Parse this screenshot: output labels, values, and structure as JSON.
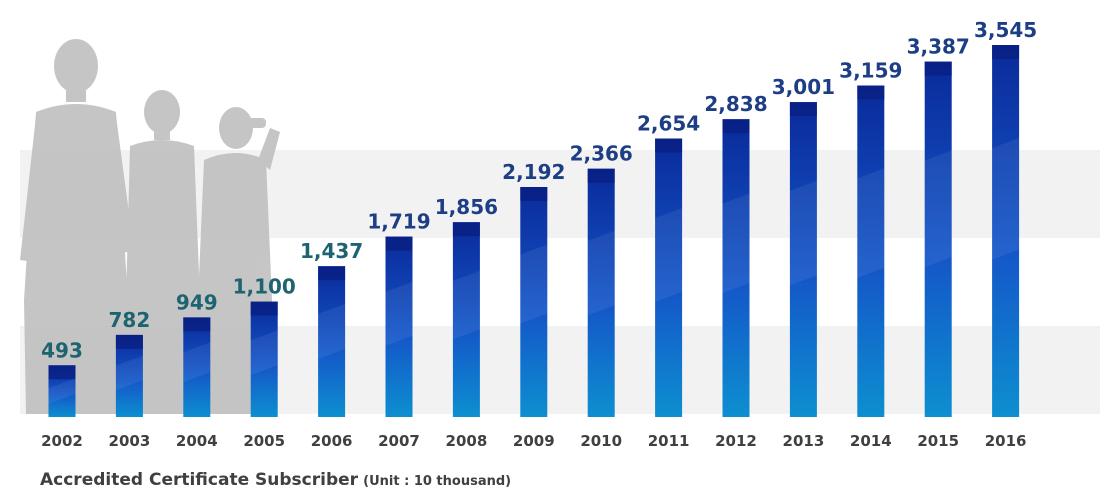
{
  "chart_data": {
    "type": "bar",
    "categories": [
      "2002",
      "2003",
      "2004",
      "2005",
      "2006",
      "2007",
      "2008",
      "2009",
      "2010",
      "2011",
      "2012",
      "2013",
      "2014",
      "2015",
      "2016"
    ],
    "values": [
      493,
      782,
      949,
      1100,
      1437,
      1719,
      1856,
      2192,
      2366,
      2654,
      2838,
      3001,
      3159,
      3387,
      3545
    ],
    "value_labels": [
      "493",
      "782",
      "949",
      "1,100",
      "1,437",
      "1,719",
      "1,856",
      "2,192",
      "2,366",
      "2,654",
      "2,838",
      "3,001",
      "3,159",
      "3,387",
      "3,545"
    ],
    "title": "Accredited Certificate Subscriber",
    "unit": "(Unit : 10 thousand)",
    "xlabel": "",
    "ylabel": "",
    "ylim": [
      0,
      3545
    ],
    "grid": false,
    "legend": "none",
    "colors": {
      "bar_bottom": "#0d8fd0",
      "bar_top": "#0a2a9a",
      "bar_cap": "#0a1f80",
      "label_early": "#1e6470",
      "label_late": "#1d3e85",
      "axis_text": "#404040",
      "band": "#f2f2f2",
      "silhouette": "#bcbcbc"
    }
  }
}
